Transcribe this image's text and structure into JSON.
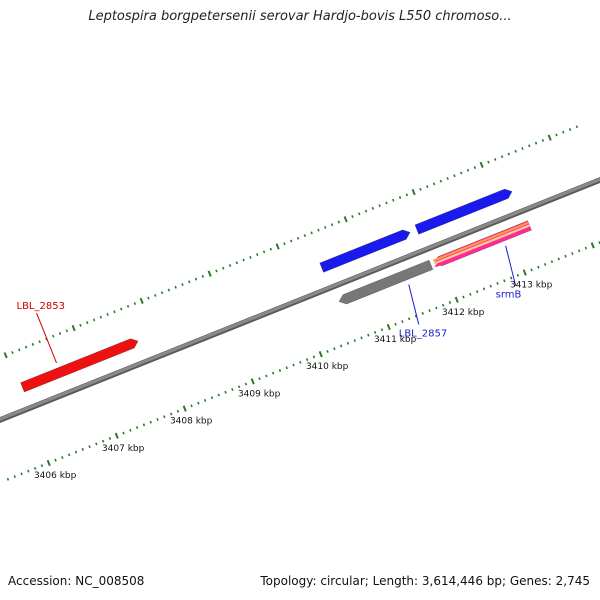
{
  "title": "Leptospira borgpetersenii serovar Hardjo-bovis L550 chromoso...",
  "footer": {
    "accession": "Accession: NC_008508",
    "summary": "Topology: circular; Length: 3,614,446 bp; Genes: 2,745"
  },
  "colors": {
    "backbone": "#8a8a8a",
    "ticks": "#2a7a2a",
    "gene_red": "#ee1111",
    "gene_blue": "#1a1aee",
    "gene_gray": "#777777",
    "label_red": "#cc0000",
    "label_blue": "#1a1acc"
  },
  "scale_ticks": [
    {
      "kbp": 3406,
      "label": "3406 kbp"
    },
    {
      "kbp": 3407,
      "label": "3407 kbp"
    },
    {
      "kbp": 3408,
      "label": "3408 kbp"
    },
    {
      "kbp": 3409,
      "label": "3409 kbp"
    },
    {
      "kbp": 3410,
      "label": "3410 kbp"
    },
    {
      "kbp": 3411,
      "label": "3411 kbp"
    },
    {
      "kbp": 3412,
      "label": "3412 kbp"
    },
    {
      "kbp": 3413,
      "label": "3413 kbp"
    }
  ],
  "genes": [
    {
      "name": "LBL_2853",
      "label": "LBL_2853",
      "start_kbp": 3406.05,
      "end_kbp": 3407.75,
      "strand": "+",
      "track": "forward",
      "color": "#ee1111"
    },
    {
      "name": "blue-forward-1",
      "label": "",
      "start_kbp": 3410.45,
      "end_kbp": 3411.75,
      "strand": "+",
      "track": "forward",
      "color": "#1a1aee"
    },
    {
      "name": "blue-forward-2",
      "label": "",
      "start_kbp": 3411.85,
      "end_kbp": 3413.25,
      "strand": "+",
      "track": "forward",
      "color": "#1a1aee"
    },
    {
      "name": "LBL_2857",
      "label": "LBL_2857",
      "start_kbp": 3410.5,
      "end_kbp": 3411.85,
      "strand": "-",
      "track": "reverse",
      "color": "#777777"
    },
    {
      "name": "srmB",
      "label": "srmB",
      "start_kbp": 3411.9,
      "end_kbp": 3413.3,
      "strand": "-",
      "track": "reverse",
      "color": "#ff2a9a"
    }
  ]
}
